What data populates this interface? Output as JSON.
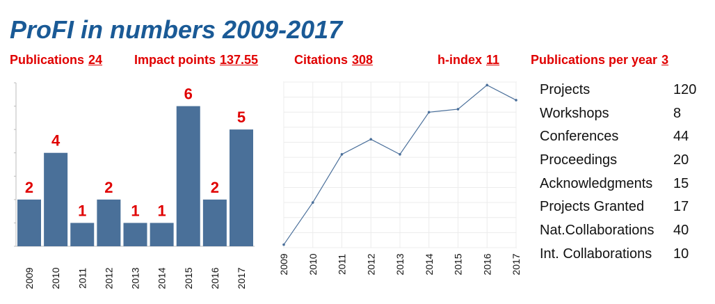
{
  "title": "ProFI in numbers 2009-2017",
  "stats": {
    "publications": {
      "label": "Publications",
      "value": "24"
    },
    "impact_points": {
      "label": "Impact points",
      "value": "137.55"
    },
    "citations": {
      "label": "Citations",
      "value": "308"
    },
    "h_index": {
      "label": "h-index",
      "value": "11"
    },
    "pubs_per_year": {
      "label": "Publications per year",
      "value": "3"
    }
  },
  "metrics": [
    {
      "label": "Projects",
      "value": "120"
    },
    {
      "label": "Workshops",
      "value": "8"
    },
    {
      "label": "Conferences",
      "value": "44"
    },
    {
      "label": "Proceedings",
      "value": "20"
    },
    {
      "label": "Acknowledgments",
      "value": "15"
    },
    {
      "label": "Projects Granted",
      "value": "17"
    },
    {
      "label": "Nat.Collaborations",
      "value": "40"
    },
    {
      "label": "Int. Collaborations",
      "value": "10"
    }
  ],
  "colors": {
    "bar": "#4a7099",
    "label": "#e00000",
    "line": "#4a6f9a",
    "title": "#1a5a96"
  },
  "chart_data": [
    {
      "type": "bar",
      "categories": [
        "2009",
        "2010",
        "2011",
        "2012",
        "2013",
        "2014",
        "2015",
        "2016",
        "2017"
      ],
      "values": [
        2,
        4,
        1,
        2,
        1,
        1,
        6,
        2,
        5
      ],
      "ylim": [
        0,
        7
      ],
      "grid": false
    },
    {
      "type": "line",
      "x": [
        "2009",
        "2010",
        "2011",
        "2012",
        "2013",
        "2014",
        "2015",
        "2016",
        "2017"
      ],
      "values": [
        1,
        15,
        31,
        36,
        31,
        45,
        46,
        54,
        49
      ],
      "ylim": [
        0,
        55
      ],
      "grid": true
    }
  ]
}
